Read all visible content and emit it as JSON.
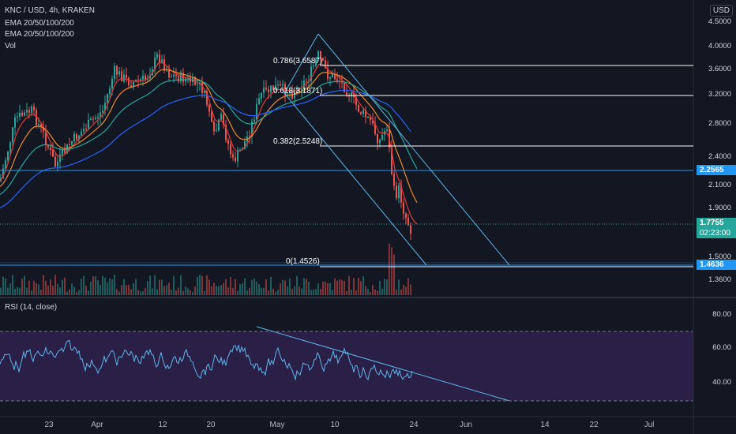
{
  "header": {
    "symbol": "KNC / USD, 4h, KRAKEN",
    "indicator1": "EMA 20/50/100/200",
    "indicator2": "EMA 20/50/100/200",
    "indicator3": "Vol",
    "currency": "USD"
  },
  "price_axis": {
    "labels": [
      "4.5000",
      "4.0000",
      "3.6000",
      "3.2000",
      "2.8000",
      "2.4000",
      "2.1000",
      "1.9000",
      "1.5000",
      "1.3600"
    ],
    "current_price": "1.7755",
    "countdown": "02:23:00",
    "level_high_badge": "2.2565",
    "level_low_badge": "1.4636"
  },
  "fib_levels": [
    {
      "label": "0.786(3.6587)"
    },
    {
      "label": "0.618(3.1871)"
    },
    {
      "label": "0.382(2.5248)"
    },
    {
      "label": "0(1.4526)"
    }
  ],
  "rsi": {
    "title": "RSI (14, close)",
    "axis_labels": [
      "80.00",
      "60.00",
      "40.00"
    ]
  },
  "time_axis": {
    "labels": [
      "23",
      "Apr",
      "12",
      "20",
      "May",
      "10",
      "24",
      "Jun",
      "14",
      "22",
      "Jul"
    ]
  },
  "colors": {
    "background": "#131722",
    "up": "#26a69a",
    "down": "#ef5350",
    "rsi_line": "#5fb6e8",
    "rsi_band": "#2a1f47",
    "ema20": "#e53935",
    "ema50": "#ef8a2d",
    "ema100": "#26a69a",
    "ema200": "#2962ff",
    "level_line": "#2196f3",
    "fib_line": "#ffffff"
  }
}
